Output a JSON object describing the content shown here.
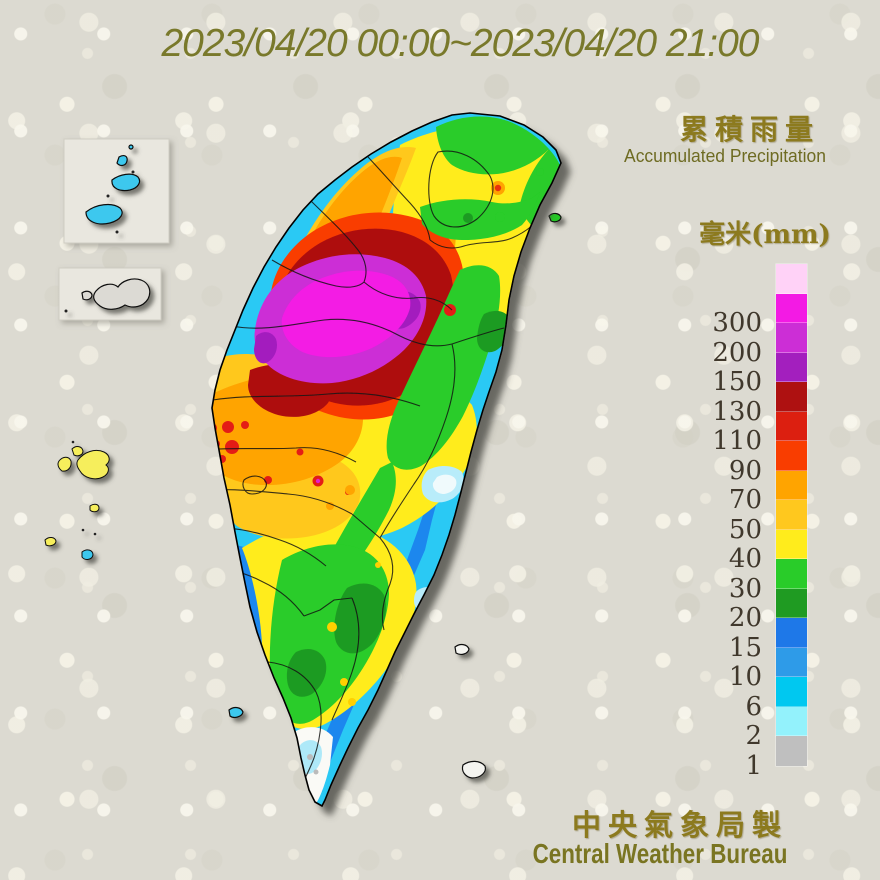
{
  "title": "2023/04/20 00:00~2023/04/20 21:00",
  "legend": {
    "title_zh": "累積雨量",
    "title_en": "Accumulated Precipitation",
    "unit_label": "毫米(mm)",
    "segments": [
      {
        "color": "#FFD2F7",
        "label": ""
      },
      {
        "color": "#F31AE4",
        "label": "300"
      },
      {
        "color": "#CC2ED6",
        "label": "200"
      },
      {
        "color": "#A31FBE",
        "label": "150"
      },
      {
        "color": "#AE1111",
        "label": "130"
      },
      {
        "color": "#DC1F10",
        "label": "110"
      },
      {
        "color": "#F93D00",
        "label": "90"
      },
      {
        "color": "#FFA400",
        "label": "70"
      },
      {
        "color": "#FFC81E",
        "label": "50"
      },
      {
        "color": "#FFEC1C",
        "label": "40"
      },
      {
        "color": "#29CC29",
        "label": "30"
      },
      {
        "color": "#1F9B22",
        "label": "20"
      },
      {
        "color": "#1E78E8",
        "label": "15"
      },
      {
        "color": "#2E9BE8",
        "label": "10"
      },
      {
        "color": "#00C8F0",
        "label": "6"
      },
      {
        "color": "#93F2FC",
        "label": "2"
      },
      {
        "color": "#BFBFBF",
        "label": "1"
      }
    ]
  },
  "footer": {
    "org_zh": "中央氣象局製",
    "org_en": "Central Weather Bureau"
  }
}
